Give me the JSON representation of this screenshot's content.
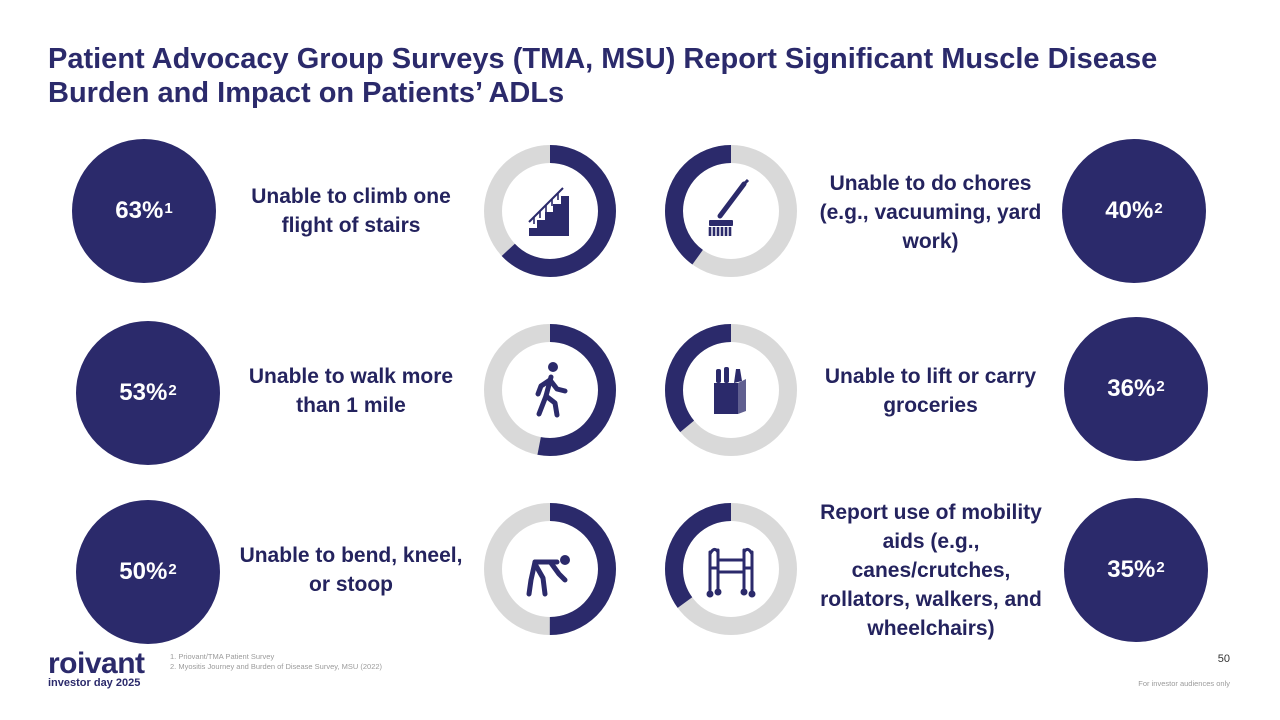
{
  "title": "Patient Advocacy Group Surveys (TMA, MSU) Report Significant Muscle Disease Burden and Impact on Patients’ ADLs",
  "colors": {
    "primary": "#2b2a6b",
    "track": "#d9d9d9"
  },
  "stats": [
    {
      "value": "63%",
      "ref": "1",
      "fraction": 0.63,
      "icon": "stairs-icon",
      "label": "Unable to climb one flight of stairs"
    },
    {
      "value": "53%",
      "ref": "2",
      "fraction": 0.53,
      "icon": "walking-person-icon",
      "label": "Unable to walk more than 1 mile"
    },
    {
      "value": "50%",
      "ref": "2",
      "fraction": 0.5,
      "icon": "bending-person-icon",
      "label": "Unable to bend, kneel, or stoop"
    },
    {
      "value": "40%",
      "ref": "2",
      "fraction": 0.4,
      "icon": "broom-icon",
      "label": "Unable to do chores (e.g., vacuuming, yard work)"
    },
    {
      "value": "36%",
      "ref": "2",
      "fraction": 0.36,
      "icon": "grocery-bag-icon",
      "label": "Unable to lift or carry groceries"
    },
    {
      "value": "35%",
      "ref": "2",
      "fraction": 0.35,
      "icon": "walker-icon",
      "label": "Report use of mobility aids (e.g., canes/crutches, rollators, walkers, and wheelchairs)"
    }
  ],
  "footnotes": [
    "1. Priovant/TMA Patient Survey",
    "2. Myositis Journey and Burden of Disease Survey, MSU (2022)"
  ],
  "logo": {
    "word": "roivant",
    "sub": "investor day 2025"
  },
  "page_number": "50",
  "disclaimer": "For investor audiences only"
}
